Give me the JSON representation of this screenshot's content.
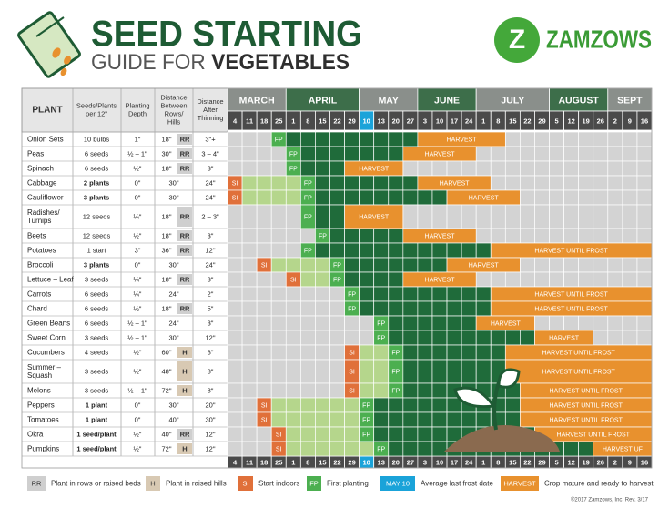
{
  "header": {
    "title": "SEED STARTING",
    "subtitle_light": "GUIDE FOR",
    "subtitle_bold": "VEGETABLES",
    "brand_mark": "Z",
    "brand": "ZAMZOWS"
  },
  "table": {
    "columns": [
      [
        "PLANT"
      ],
      [
        "Seeds/Plants",
        "per 12\""
      ],
      [
        "Planting",
        "Depth"
      ],
      [
        "Distance",
        "Between",
        "Rows/",
        "Hills"
      ],
      [
        "Distance",
        "After",
        "Thinning"
      ]
    ],
    "months": [
      {
        "name": "MARCH",
        "days": [
          4,
          11,
          18,
          25
        ]
      },
      {
        "name": "APRIL",
        "days": [
          1,
          8,
          15,
          22,
          29
        ]
      },
      {
        "name": "MAY",
        "days": [
          10,
          13,
          20,
          27
        ]
      },
      {
        "name": "JUNE",
        "days": [
          3,
          10,
          17,
          24
        ]
      },
      {
        "name": "JULY",
        "days": [
          1,
          8,
          15,
          22,
          29
        ]
      },
      {
        "name": "AUGUST",
        "days": [
          5,
          12,
          19,
          26
        ]
      },
      {
        "name": "SEPT",
        "days": [
          2,
          9,
          16
        ]
      }
    ],
    "rows": [
      {
        "plant": "Onion Sets",
        "seeds": "10 bulbs",
        "depth": "1\"",
        "rows": "18\"",
        "marker": "RR",
        "thinning": "3\"+",
        "fp": "FP",
        "harvest": "HARVEST"
      },
      {
        "plant": "Peas",
        "seeds": "6 seeds",
        "depth": "½ – 1\"",
        "rows": "30\"",
        "marker": "RR",
        "thinning": "3 – 4\"",
        "fp": "FP",
        "harvest": "HARVEST"
      },
      {
        "plant": "Spinach",
        "seeds": "6 seeds",
        "depth": "½\"",
        "rows": "18\"",
        "marker": "RR",
        "thinning": "3\"",
        "fp": "FP",
        "harvest": "HARVEST"
      },
      {
        "plant": "Cabbage",
        "seeds": "2 plants",
        "depth": "0\"",
        "rows": "30\"",
        "thinning": "24\"",
        "si": "SI",
        "fp": "FP",
        "harvest": "HARVEST"
      },
      {
        "plant": "Cauliflower",
        "seeds": "3 plants",
        "depth": "0\"",
        "rows": "30\"",
        "thinning": "24\"",
        "si": "SI",
        "fp": "FP",
        "harvest": "HARVEST"
      },
      {
        "plant": [
          "Radishes/",
          "Turnips"
        ],
        "seeds": "12 seeds",
        "depth": "¼\"",
        "rows": "18\"",
        "marker": "RR",
        "thinning": "2 – 3\"",
        "fp": "FP",
        "harvest": "HARVEST"
      },
      {
        "plant": "Beets",
        "seeds": "12 seeds",
        "depth": "½\"",
        "rows": "18\"",
        "marker": "RR",
        "thinning": "3\"",
        "fp": "FP",
        "harvest": "HARVEST"
      },
      {
        "plant": "Potatoes",
        "seeds": "1 start",
        "depth": "3\"",
        "rows": "36\"",
        "marker": "RR",
        "thinning": "12\"",
        "fp": "FP",
        "harvest": "HARVEST UNTIL FROST"
      },
      {
        "plant": "Broccoli",
        "seeds": "3 plants",
        "depth": "0\"",
        "rows": "30\"",
        "thinning": "24\"",
        "si": "SI",
        "fp": "FP",
        "harvest": "HARVEST"
      },
      {
        "plant": "Lettuce – Leaf",
        "seeds": "3 seeds",
        "depth": "¼\"",
        "rows": "18\"",
        "marker": "RR",
        "thinning": "3\"",
        "si": "SI",
        "fp": "FP",
        "harvest": "HARVEST"
      },
      {
        "plant": "Carrots",
        "seeds": "6 seeds",
        "depth": "¼\"",
        "rows": "24\"",
        "thinning": "2\"",
        "fp": "FP",
        "harvest": "HARVEST UNTIL FROST"
      },
      {
        "plant": "Chard",
        "seeds": "6 seeds",
        "depth": "½\"",
        "rows": "18\"",
        "marker": "RR",
        "thinning": "5\"",
        "fp": "FP",
        "harvest": "HARVEST UNTIL FROST"
      },
      {
        "plant": "Green Beans",
        "seeds": "6 seeds",
        "depth": "½ – 1\"",
        "rows": "24\"",
        "thinning": "3\"",
        "fp": "FP",
        "harvest": "HARVEST"
      },
      {
        "plant": "Sweet Corn",
        "seeds": "3 seeds",
        "depth": "½ – 1\"",
        "rows": "30\"",
        "thinning": "12\"",
        "fp": "FP",
        "harvest": "HARVEST"
      },
      {
        "plant": "Cucumbers",
        "seeds": "4 seeds",
        "depth": "½\"",
        "rows": "60\"",
        "marker": "H",
        "thinning": "8\"",
        "si": "SI",
        "fp": "FP",
        "harvest": "HARVEST UNTIL FROST"
      },
      {
        "plant": [
          "Summer –",
          "Squash"
        ],
        "seeds": "3 seeds",
        "depth": "½\"",
        "rows": "48\"",
        "marker": "H",
        "thinning": "8\"",
        "si": "SI",
        "fp": "FP",
        "harvest": "HARVEST UNTIL FROST"
      },
      {
        "plant": "Melons",
        "seeds": "3 seeds",
        "depth": "½ – 1\"",
        "rows": "72\"",
        "marker": "H",
        "thinning": "8\"",
        "si": "SI",
        "fp": "FP",
        "harvest": "HARVEST UNTIL FROST"
      },
      {
        "plant": "Peppers",
        "seeds": "1 plant",
        "depth": "0\"",
        "rows": "30\"",
        "thinning": "20\"",
        "si": "SI",
        "fp": "FP",
        "harvest": "HARVEST UNTIL FROST"
      },
      {
        "plant": "Tomatoes",
        "seeds": "1 plant",
        "depth": "0\"",
        "rows": "40\"",
        "thinning": "30\"",
        "si": "SI",
        "fp": "FP",
        "harvest": "HARVEST UNTIL FROST"
      },
      {
        "plant": "Okra",
        "seeds": "1 seed/plant",
        "depth": "½\"",
        "rows": "40\"",
        "marker": "RR",
        "thinning": "12\"",
        "si": "SI",
        "fp": "FP",
        "harvest": "HARVEST UNTIL FROST"
      },
      {
        "plant": "Pumpkins",
        "seeds": "1 seed/plant",
        "depth": "½\"",
        "rows": "72\"",
        "marker": "H",
        "thinning": "12\"",
        "si": "SI",
        "fp": "FP",
        "harvest": "HARVEST UF"
      }
    ]
  },
  "legend": [
    {
      "key": "RR",
      "text": "Plant in rows or raised beds"
    },
    {
      "key": "H",
      "text": "Plant in raised hills"
    },
    {
      "key": "SI",
      "text": "Start indoors"
    },
    {
      "key": "FP",
      "text": "First planting"
    },
    {
      "key": "MAY 10",
      "text": "Average last frost date"
    },
    {
      "key": "HARVEST",
      "text": "Crop mature and ready to harvest"
    }
  ],
  "footer": "©2017 Zamzows, Inc. Rev. 3/17"
}
